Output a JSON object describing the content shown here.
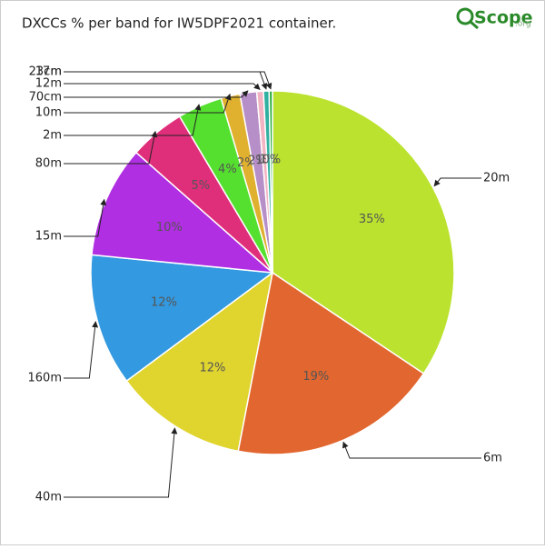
{
  "chart_data": {
    "type": "pie",
    "title": "DXCCs % per band for IW5DPF2021 container.",
    "logo": {
      "name": "Scope",
      "suffix": ".org"
    },
    "categories": [
      "20m",
      "6m",
      "40m",
      "160m",
      "15m",
      "80m",
      "2m",
      "10m",
      "70cm",
      "12m",
      "17m",
      "23cm"
    ],
    "values": [
      34.6,
      18.8,
      11.9,
      11.8,
      10,
      5,
      4,
      1.7,
      1.5,
      0.6,
      0.5,
      0.3
    ],
    "value_labels": [
      "35%",
      "19%",
      "12%",
      "12%",
      "10%",
      "5%",
      "4%",
      "2%",
      "2%",
      "1%",
      "1%",
      "0%"
    ],
    "colors": [
      "#bbe22f",
      "#e2662f",
      "#e0d42f",
      "#3399e0",
      "#b02fe2",
      "#e02f7a",
      "#55e02f",
      "#e0b02f",
      "#b78fc8",
      "#f2b3c3",
      "#2fb0a0",
      "#2fb040"
    ]
  }
}
